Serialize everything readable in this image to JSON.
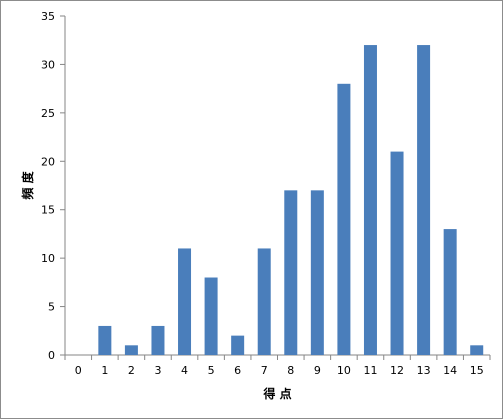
{
  "chart_data": {
    "type": "bar",
    "title": "",
    "xlabel": "得 点",
    "ylabel": "頻 度",
    "categories": [
      "0",
      "1",
      "2",
      "3",
      "4",
      "5",
      "6",
      "7",
      "8",
      "9",
      "10",
      "11",
      "12",
      "13",
      "14",
      "15"
    ],
    "values": [
      0,
      3,
      1,
      3,
      11,
      8,
      2,
      11,
      17,
      17,
      28,
      32,
      21,
      32,
      13,
      1
    ],
    "ylim": [
      0,
      35
    ],
    "yticks": [
      0,
      5,
      10,
      15,
      20,
      25,
      30,
      35
    ],
    "grid": false,
    "legend": "none",
    "bar_color": "#4a7ebb",
    "axis_color": "#868686"
  }
}
